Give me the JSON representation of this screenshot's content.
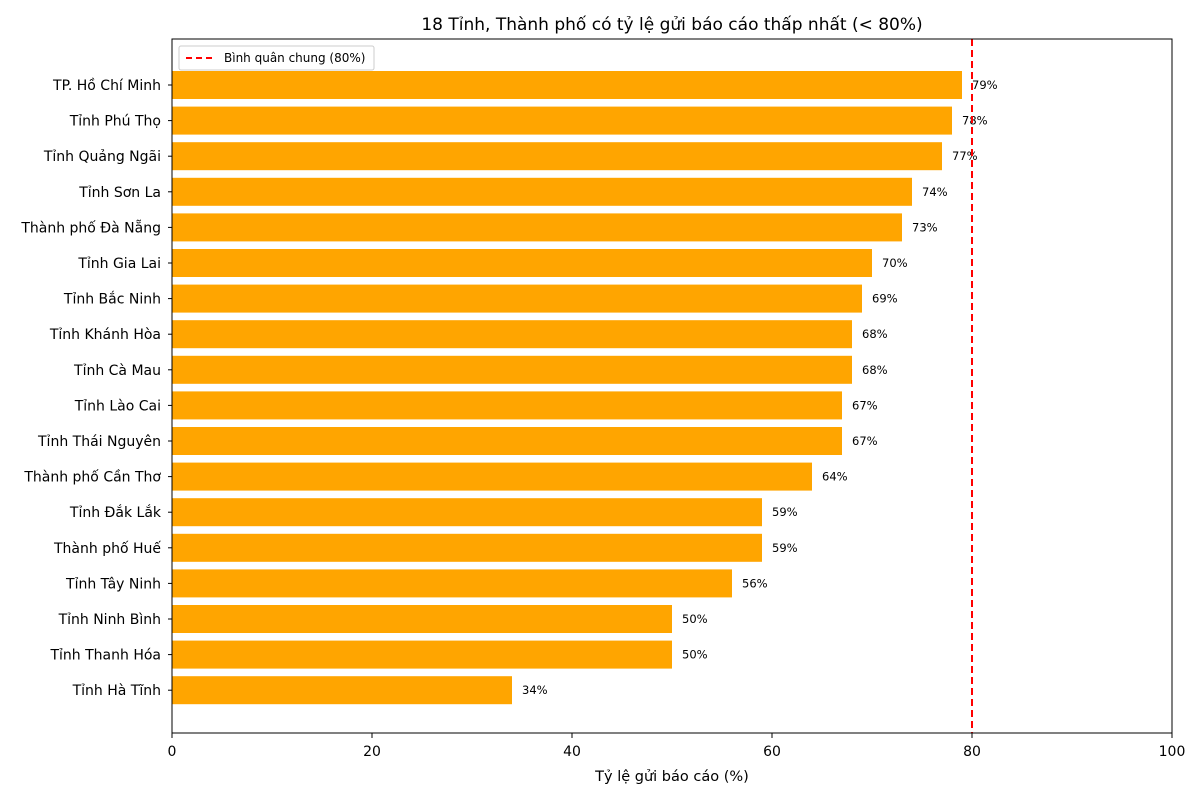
{
  "chart_data": {
    "type": "bar",
    "orientation": "horizontal",
    "title": "18 Tỉnh, Thành phố có tỷ lệ gửi báo cáo thấp nhất (< 80%)",
    "xlabel": "Tỷ lệ gửi báo cáo (%)",
    "ylabel": "",
    "xlim": [
      0,
      100
    ],
    "xticks": [
      0,
      20,
      40,
      60,
      80,
      100
    ],
    "grid": false,
    "bar_color": "#FFA500",
    "categories": [
      "TP. Hồ Chí Minh",
      "Tỉnh Phú Thọ",
      "Tỉnh Quảng Ngãi",
      "Tỉnh Sơn La",
      "Thành phố Đà Nẵng",
      "Tỉnh Gia Lai",
      "Tỉnh Bắc Ninh",
      "Tỉnh Khánh Hòa",
      "Tỉnh Cà Mau",
      "Tỉnh Lào Cai",
      "Tỉnh Thái Nguyên",
      "Thành phố Cần Thơ",
      "Tỉnh Đắk Lắk",
      "Thành phố Huế",
      "Tỉnh Tây Ninh",
      "Tỉnh Ninh Bình",
      "Tỉnh Thanh Hóa",
      "Tỉnh Hà Tĩnh"
    ],
    "values": [
      79,
      78,
      77,
      74,
      73,
      70,
      69,
      68,
      68,
      67,
      67,
      64,
      59,
      59,
      56,
      50,
      50,
      34
    ],
    "value_labels": [
      "79%",
      "78%",
      "77%",
      "74%",
      "73%",
      "70%",
      "69%",
      "68%",
      "68%",
      "67%",
      "67%",
      "64%",
      "59%",
      "59%",
      "56%",
      "50%",
      "50%",
      "34%"
    ],
    "reference_line": {
      "value": 80,
      "label": "Bình quân chung (80%)",
      "color": "#FF0000",
      "style": "dashed"
    },
    "legend": {
      "placement": "top-left",
      "entries": [
        "Bình quân chung (80%)"
      ]
    }
  }
}
